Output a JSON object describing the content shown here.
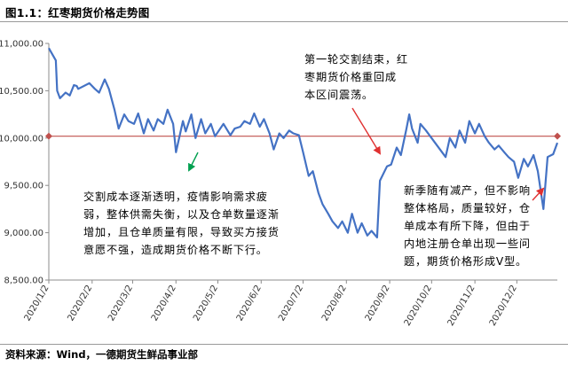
{
  "figure": {
    "title": "图1.1：红枣期货价格走势图",
    "source": "资料来源：Wind，一德期货生鲜品事业部"
  },
  "colors": {
    "series": "#4472C4",
    "reference": "#C0504D",
    "arrow_green": "#00A050",
    "arrow_red": "#E03030",
    "axis": "#8c8c8c"
  },
  "annotations": [
    {
      "lines": [
        "第一轮交割结束，红",
        "枣期货价格重回成",
        "本区间震荡。"
      ]
    },
    {
      "lines": [
        "交割成本逐渐透明，疫情影响需求疲",
        "弱，整体供需失衡，以及仓单数量逐渐",
        "增加，且仓单质量有限，导致买方接货",
        "意愿不强，造成期货价格不断下行。"
      ]
    },
    {
      "lines": [
        "新季随有减产，但不影响",
        "整体格局，质量较好，仓",
        "单成本有所下降，但由于",
        "内地注册仓单出现一些问",
        "题，期货价格形成V型。"
      ]
    }
  ],
  "chart_data": {
    "type": "line",
    "title": "",
    "xlabel": "",
    "ylabel": "",
    "ylim": [
      8500,
      11000
    ],
    "yticks": [
      "8,500.00",
      "9,000.00",
      "9,500.00",
      "10,000.00",
      "10,500.00",
      "11,000.00"
    ],
    "xticks": [
      "2020/1/2",
      "2020/2/2",
      "2020/3/2",
      "2020/4/2",
      "2020/5/2",
      "2020/6/2",
      "2020/7/2",
      "2020/8/2",
      "2020/9/2",
      "2020/10/2",
      "2020/11/2",
      "2020/12/2"
    ],
    "reference_line": 10020,
    "series": [
      {
        "points": [
          [
            "2020-01-02",
            10950
          ],
          [
            "2020-01-07",
            10820
          ],
          [
            "2020-01-08",
            10500
          ],
          [
            "2020-01-10",
            10420
          ],
          [
            "2020-01-14",
            10480
          ],
          [
            "2020-01-17",
            10450
          ],
          [
            "2020-01-20",
            10560
          ],
          [
            "2020-01-22",
            10550
          ],
          [
            "2020-01-23",
            10520
          ],
          [
            "2020-01-31",
            10580
          ],
          [
            "2020-02-04",
            10520
          ],
          [
            "2020-02-07",
            10480
          ],
          [
            "2020-02-11",
            10620
          ],
          [
            "2020-02-14",
            10520
          ],
          [
            "2020-02-18",
            10300
          ],
          [
            "2020-02-21",
            10100
          ],
          [
            "2020-02-25",
            10250
          ],
          [
            "2020-02-28",
            10180
          ],
          [
            "2020-03-03",
            10150
          ],
          [
            "2020-03-06",
            10260
          ],
          [
            "2020-03-10",
            10050
          ],
          [
            "2020-03-13",
            10200
          ],
          [
            "2020-03-17",
            10080
          ],
          [
            "2020-03-20",
            10200
          ],
          [
            "2020-03-24",
            10150
          ],
          [
            "2020-03-27",
            10300
          ],
          [
            "2020-03-31",
            10150
          ],
          [
            "2020-04-02",
            9850
          ],
          [
            "2020-04-07",
            10180
          ],
          [
            "2020-04-09",
            10070
          ],
          [
            "2020-04-13",
            10250
          ],
          [
            "2020-04-16",
            10000
          ],
          [
            "2020-04-20",
            10200
          ],
          [
            "2020-04-23",
            10050
          ],
          [
            "2020-04-27",
            10150
          ],
          [
            "2020-04-30",
            10020
          ],
          [
            "2020-05-06",
            10150
          ],
          [
            "2020-05-11",
            10030
          ],
          [
            "2020-05-14",
            10100
          ],
          [
            "2020-05-18",
            10120
          ],
          [
            "2020-05-21",
            10180
          ],
          [
            "2020-05-25",
            10150
          ],
          [
            "2020-05-28",
            10260
          ],
          [
            "2020-06-01",
            10120
          ],
          [
            "2020-06-04",
            10200
          ],
          [
            "2020-06-08",
            10050
          ],
          [
            "2020-06-11",
            9880
          ],
          [
            "2020-06-15",
            10050
          ],
          [
            "2020-06-18",
            10000
          ],
          [
            "2020-06-22",
            10080
          ],
          [
            "2020-06-25",
            10050
          ],
          [
            "2020-06-29",
            10030
          ],
          [
            "2020-07-02",
            9850
          ],
          [
            "2020-07-06",
            9600
          ],
          [
            "2020-07-09",
            9650
          ],
          [
            "2020-07-13",
            9420
          ],
          [
            "2020-07-16",
            9300
          ],
          [
            "2020-07-20",
            9200
          ],
          [
            "2020-07-23",
            9120
          ],
          [
            "2020-07-27",
            9050
          ],
          [
            "2020-07-30",
            9120
          ],
          [
            "2020-08-03",
            9000
          ],
          [
            "2020-08-06",
            9200
          ],
          [
            "2020-08-10",
            9000
          ],
          [
            "2020-08-13",
            9100
          ],
          [
            "2020-08-17",
            8970
          ],
          [
            "2020-08-20",
            9020
          ],
          [
            "2020-08-24",
            8950
          ],
          [
            "2020-08-26",
            9550
          ],
          [
            "2020-08-31",
            9700
          ],
          [
            "2020-09-03",
            9720
          ],
          [
            "2020-09-07",
            9900
          ],
          [
            "2020-09-10",
            9820
          ],
          [
            "2020-09-14",
            10100
          ],
          [
            "2020-09-16",
            10250
          ],
          [
            "2020-09-18",
            10100
          ],
          [
            "2020-09-22",
            9950
          ],
          [
            "2020-09-24",
            10150
          ],
          [
            "2020-09-28",
            10080
          ],
          [
            "2020-10-12",
            9800
          ],
          [
            "2020-10-15",
            10000
          ],
          [
            "2020-10-19",
            9900
          ],
          [
            "2020-10-22",
            10080
          ],
          [
            "2020-10-26",
            9950
          ],
          [
            "2020-10-29",
            10180
          ],
          [
            "2020-11-02",
            10050
          ],
          [
            "2020-11-05",
            10150
          ],
          [
            "2020-11-09",
            10020
          ],
          [
            "2020-11-12",
            9950
          ],
          [
            "2020-11-16",
            9880
          ],
          [
            "2020-11-19",
            9920
          ],
          [
            "2020-11-23",
            9850
          ],
          [
            "2020-11-26",
            9800
          ],
          [
            "2020-11-30",
            9750
          ],
          [
            "2020-12-03",
            9580
          ],
          [
            "2020-12-07",
            9780
          ],
          [
            "2020-12-10",
            9700
          ],
          [
            "2020-12-14",
            9820
          ],
          [
            "2020-12-17",
            9650
          ],
          [
            "2020-12-21",
            9250
          ],
          [
            "2020-12-24",
            9800
          ],
          [
            "2020-12-28",
            9830
          ],
          [
            "2020-12-31",
            9950
          ]
        ]
      }
    ]
  }
}
